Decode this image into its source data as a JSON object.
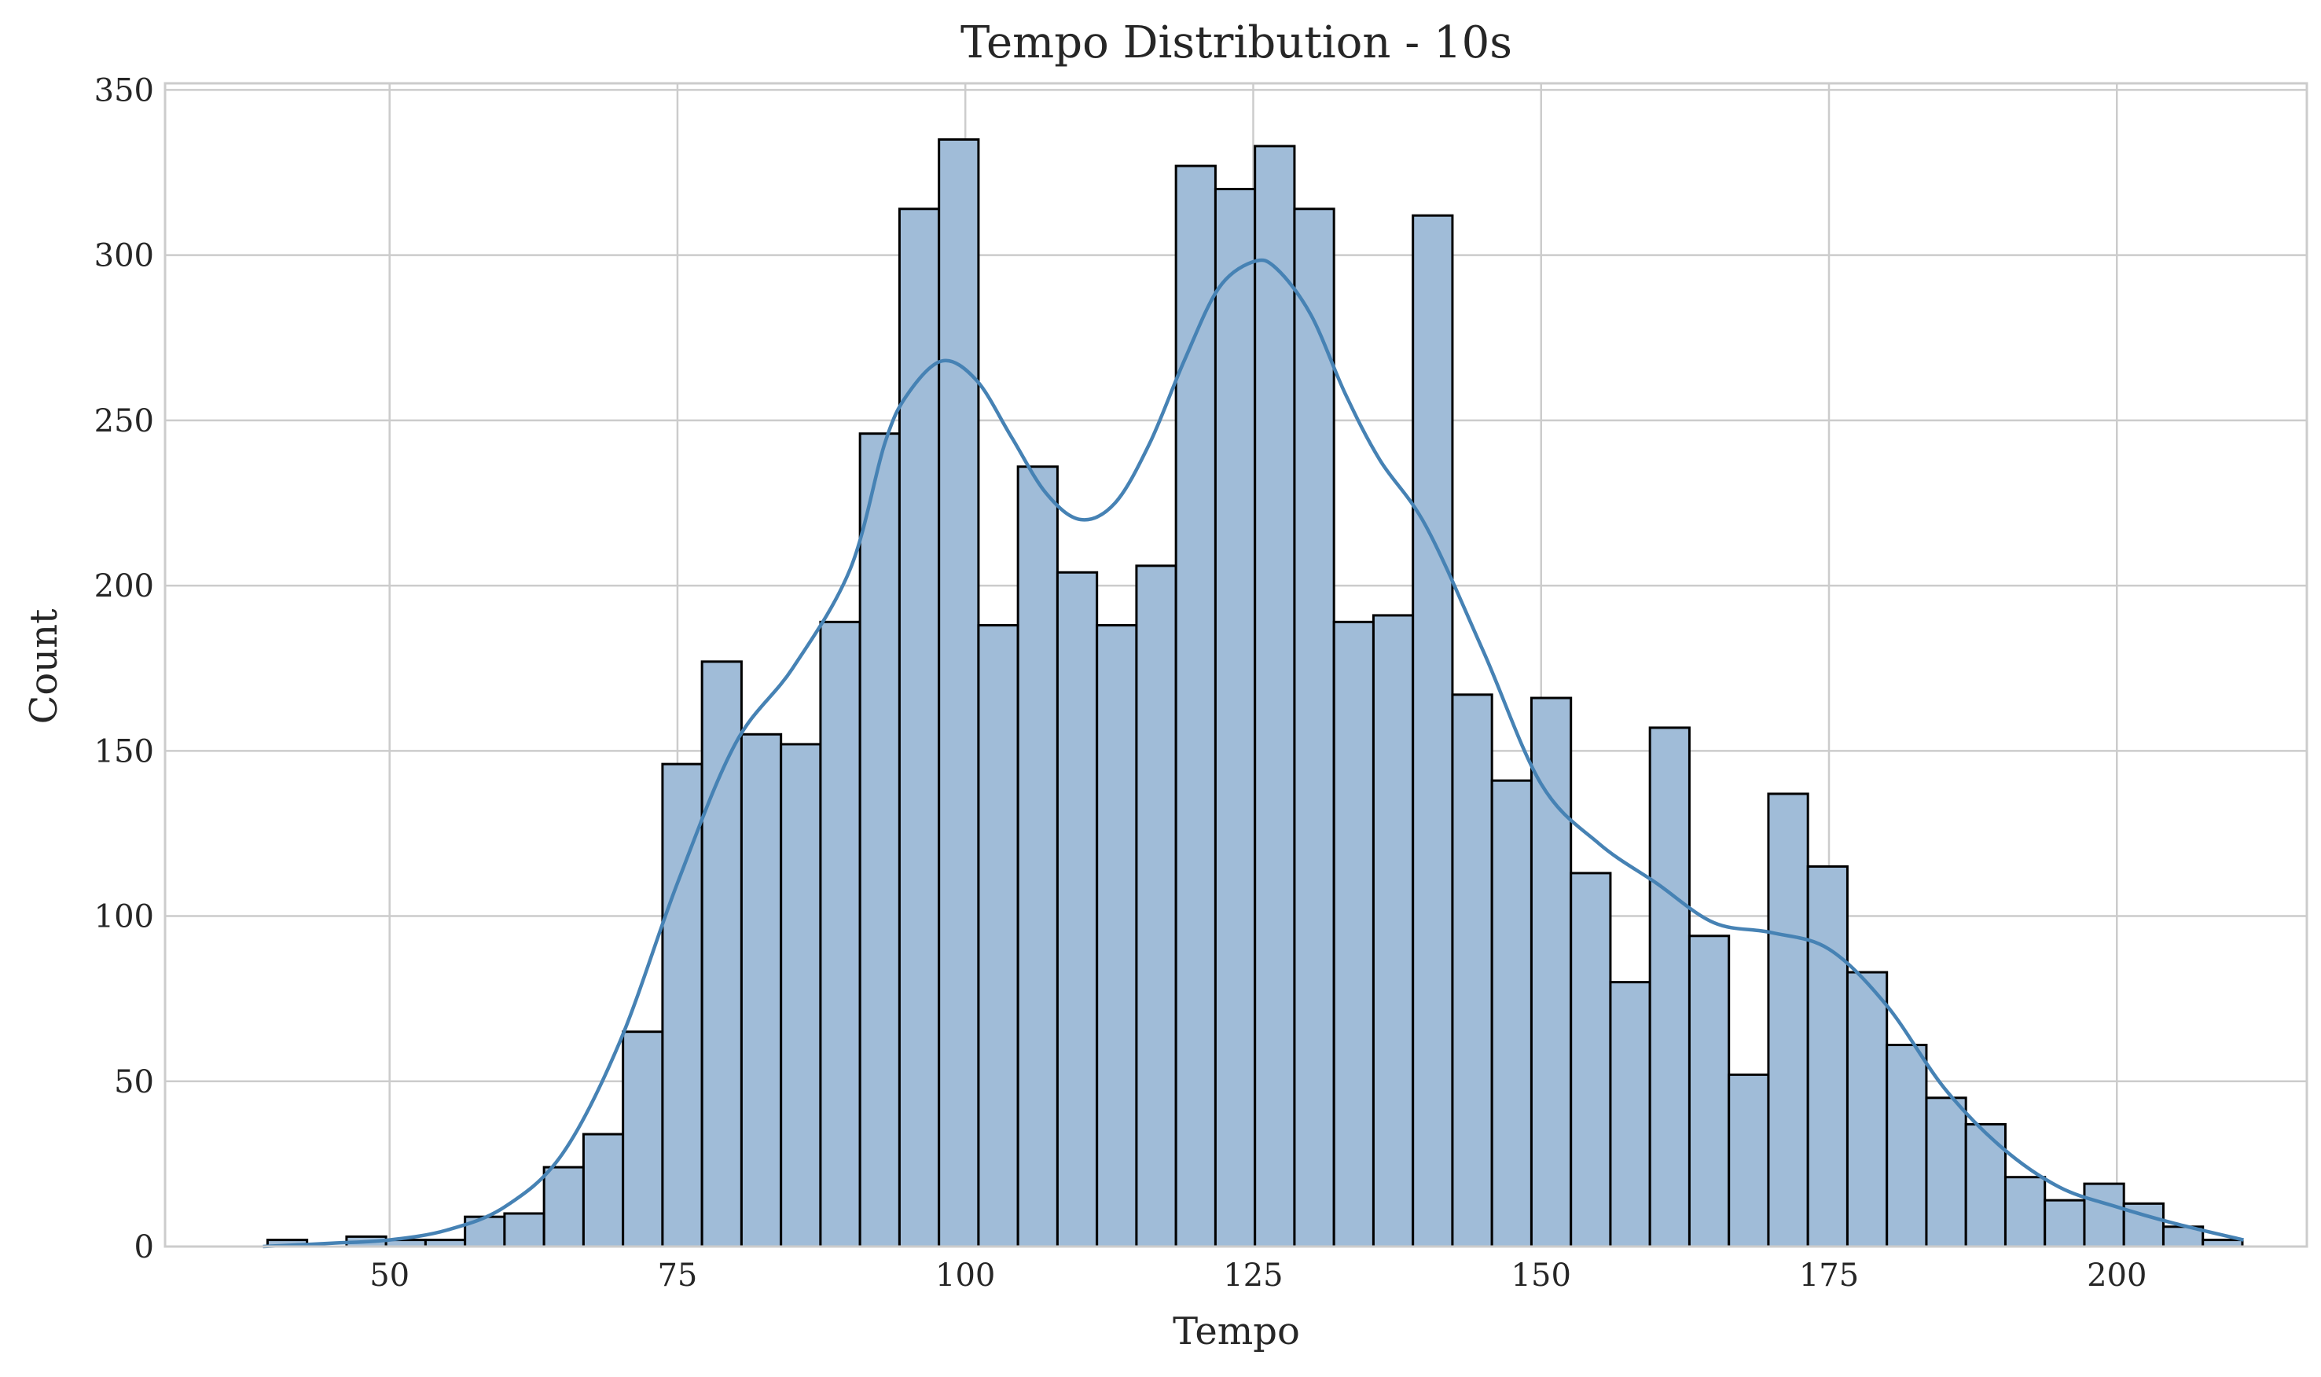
{
  "chart_data": {
    "type": "bar",
    "title": "Tempo Distribution - 10s",
    "xlabel": "Tempo",
    "ylabel": "Count",
    "xlim": [
      30.5,
      216.5
    ],
    "ylim": [
      0,
      352
    ],
    "xticks": [
      50,
      75,
      100,
      125,
      150,
      175,
      200
    ],
    "yticks": [
      0,
      50,
      100,
      150,
      200,
      250,
      300,
      350
    ],
    "grid": true,
    "bin_start": 39.4,
    "bin_width": 3.43,
    "counts": [
      2,
      0,
      3,
      2,
      2,
      9,
      10,
      24,
      34,
      65,
      146,
      177,
      155,
      152,
      189,
      246,
      314,
      335,
      188,
      236,
      204,
      188,
      206,
      327,
      320,
      333,
      314,
      189,
      191,
      312,
      167,
      141,
      166,
      113,
      80,
      157,
      94,
      52,
      137,
      115,
      83,
      61,
      45,
      37,
      21,
      14,
      19,
      13,
      6,
      2
    ],
    "kde": {
      "x": [
        39,
        45,
        50,
        55,
        60,
        65,
        70,
        75,
        80,
        85,
        90,
        93,
        95,
        98,
        101,
        104,
        107,
        110,
        113,
        116,
        119,
        122,
        125,
        127,
        130,
        133,
        136,
        140,
        145,
        150,
        155,
        160,
        165,
        170,
        175,
        180,
        185,
        190,
        195,
        200,
        205,
        211
      ],
      "y": [
        0,
        1,
        2,
        5,
        12,
        28,
        62,
        110,
        152,
        175,
        205,
        243,
        258,
        268,
        262,
        245,
        228,
        220,
        225,
        243,
        268,
        290,
        298,
        296,
        282,
        258,
        238,
        218,
        180,
        140,
        122,
        110,
        98,
        95,
        90,
        73,
        48,
        30,
        18,
        12,
        7,
        2
      ]
    },
    "bar_fill": "#a0bcd8",
    "bar_edge": "#000000",
    "line_color": "#4682b4",
    "grid_color": "#cccccc",
    "axis_color": "#cccccc",
    "text_color": "#262626"
  }
}
